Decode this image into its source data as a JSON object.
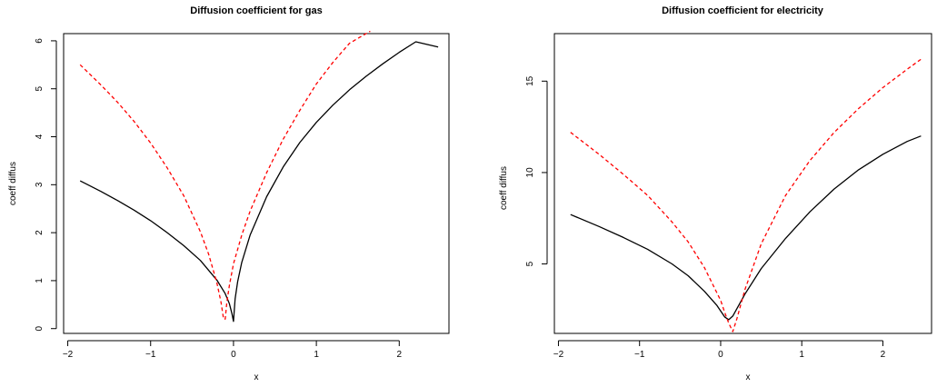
{
  "chart_data": [
    {
      "type": "line",
      "title": "Diffusion coefficient for gas",
      "xlabel": "x",
      "ylabel": "coeff diffus",
      "xlim": [
        -2.05,
        2.6
      ],
      "ylim": [
        -0.1,
        6.15
      ],
      "xticks": [
        -2,
        -1,
        0,
        1,
        2
      ],
      "yticks": [
        0,
        1,
        2,
        3,
        4,
        5,
        6
      ],
      "grid": false,
      "series": [
        {
          "color": "#000000",
          "dash": "solid",
          "x": [
            -1.85,
            -1.6,
            -1.4,
            -1.2,
            -1.0,
            -0.8,
            -0.6,
            -0.4,
            -0.2,
            -0.1,
            -0.05,
            -0.02,
            0.0,
            0.02,
            0.05,
            0.1,
            0.2,
            0.4,
            0.6,
            0.8,
            1.0,
            1.2,
            1.4,
            1.6,
            1.8,
            2.0,
            2.2,
            2.47
          ],
          "y": [
            3.08,
            2.86,
            2.67,
            2.47,
            2.25,
            2.0,
            1.73,
            1.42,
            1.01,
            0.73,
            0.52,
            0.32,
            0.15,
            0.62,
            0.98,
            1.38,
            1.95,
            2.75,
            3.37,
            3.88,
            4.3,
            4.66,
            4.98,
            5.26,
            5.52,
            5.76,
            5.98,
            5.87
          ]
        },
        {
          "color": "#ff0000",
          "dash": "dashed",
          "x": [
            -1.85,
            -1.6,
            -1.4,
            -1.2,
            -1.0,
            -0.8,
            -0.6,
            -0.4,
            -0.3,
            -0.2,
            -0.15,
            -0.12,
            -0.1,
            -0.08,
            -0.05,
            0.0,
            0.1,
            0.2,
            0.4,
            0.6,
            0.8,
            1.0,
            1.2,
            1.4,
            1.65
          ],
          "y": [
            5.5,
            5.08,
            4.72,
            4.32,
            3.87,
            3.35,
            2.77,
            2.02,
            1.55,
            0.95,
            0.55,
            0.2,
            0.2,
            0.55,
            0.9,
            1.35,
            1.95,
            2.45,
            3.25,
            3.95,
            4.55,
            5.1,
            5.55,
            5.95,
            6.2
          ]
        }
      ]
    },
    {
      "type": "line",
      "title": "Diffusion coefficient for electricity",
      "xlabel": "x",
      "ylabel": "coeff diffus",
      "xlim": [
        -2.05,
        2.6
      ],
      "ylim": [
        1.2,
        17.6
      ],
      "xticks": [
        -2,
        -1,
        0,
        1,
        2
      ],
      "yticks": [
        5,
        10,
        15
      ],
      "grid": false,
      "series": [
        {
          "color": "#000000",
          "dash": "solid",
          "x": [
            -1.85,
            -1.5,
            -1.2,
            -0.9,
            -0.6,
            -0.4,
            -0.2,
            -0.05,
            0.05,
            0.1,
            0.15,
            0.2,
            0.3,
            0.5,
            0.8,
            1.1,
            1.4,
            1.7,
            2.0,
            2.3,
            2.47
          ],
          "y": [
            7.7,
            7.05,
            6.45,
            5.8,
            5.0,
            4.35,
            3.5,
            2.75,
            2.1,
            1.95,
            2.15,
            2.55,
            3.35,
            4.75,
            6.4,
            7.85,
            9.1,
            10.15,
            11.0,
            11.7,
            12.0
          ]
        },
        {
          "color": "#ff0000",
          "dash": "dashed",
          "x": [
            -1.85,
            -1.5,
            -1.2,
            -0.9,
            -0.6,
            -0.4,
            -0.2,
            0.0,
            0.05,
            0.1,
            0.15,
            0.2,
            0.3,
            0.5,
            0.8,
            1.1,
            1.4,
            1.7,
            2.0,
            2.3,
            2.47
          ],
          "y": [
            12.2,
            11.0,
            9.9,
            8.75,
            7.3,
            6.2,
            4.8,
            3.0,
            2.35,
            1.75,
            1.3,
            2.0,
            3.6,
            6.1,
            8.75,
            10.65,
            12.2,
            13.5,
            14.65,
            15.65,
            16.2
          ]
        }
      ]
    }
  ]
}
